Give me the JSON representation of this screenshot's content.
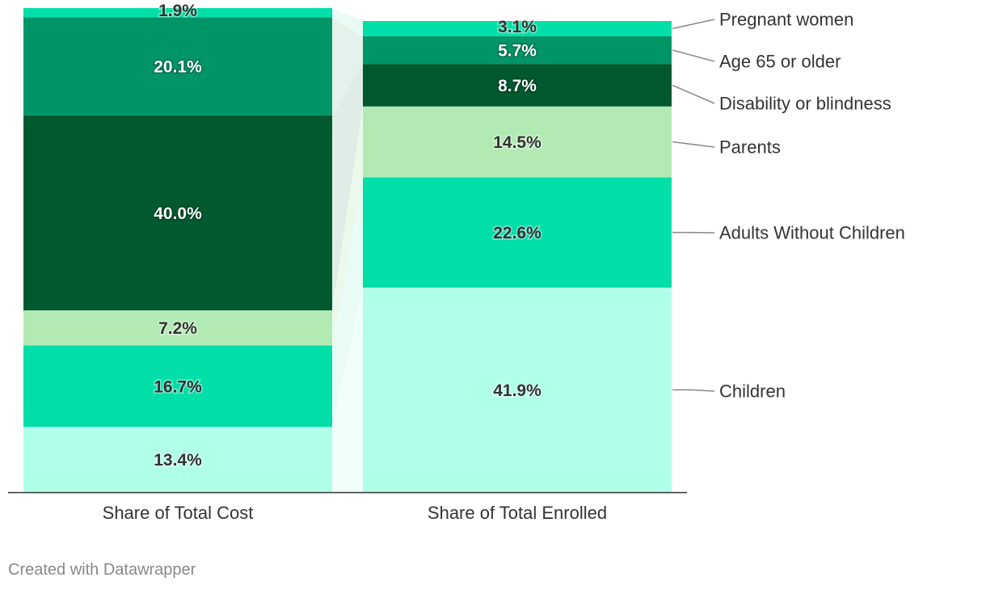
{
  "chart_data": {
    "type": "bar",
    "stacked": true,
    "title": "",
    "xlabel": "",
    "ylabel": "",
    "ylim": [
      0,
      100
    ],
    "categories": [
      "Share of Total Cost",
      "Share of Total Enrolled"
    ],
    "series": [
      {
        "name": "Children",
        "values": [
          13.4,
          41.9
        ],
        "labels": [
          "13.4%",
          "41.9%"
        ],
        "color": "#b0ffe9",
        "text_color": "#333333"
      },
      {
        "name": "Adults Without Children",
        "values": [
          16.7,
          22.6
        ],
        "labels": [
          "16.7%",
          "22.6%"
        ],
        "color": "#00dfa7",
        "text_color": "#333333"
      },
      {
        "name": "Parents",
        "values": [
          7.2,
          14.5
        ],
        "labels": [
          "7.2%",
          "14.5%"
        ],
        "color": "#b1ebb3",
        "text_color": "#333333"
      },
      {
        "name": "Disability or blindness",
        "values": [
          40.0,
          8.7
        ],
        "labels": [
          "40.0%",
          "8.7%"
        ],
        "color": "#00592f",
        "text_color": "#ffffff"
      },
      {
        "name": "Age 65 or older",
        "values": [
          20.1,
          5.7
        ],
        "labels": [
          "20.1%",
          "5.7%"
        ],
        "color": "#009567",
        "text_color": "#ffffff"
      },
      {
        "name": "Pregnant women",
        "values": [
          1.9,
          3.1
        ],
        "labels": [
          "1.9%",
          "3.1%"
        ],
        "color": "#00dfa7",
        "text_color": "#333333"
      }
    ],
    "legend_position": "right"
  },
  "footer": {
    "credit": "Created with Datawrapper"
  }
}
